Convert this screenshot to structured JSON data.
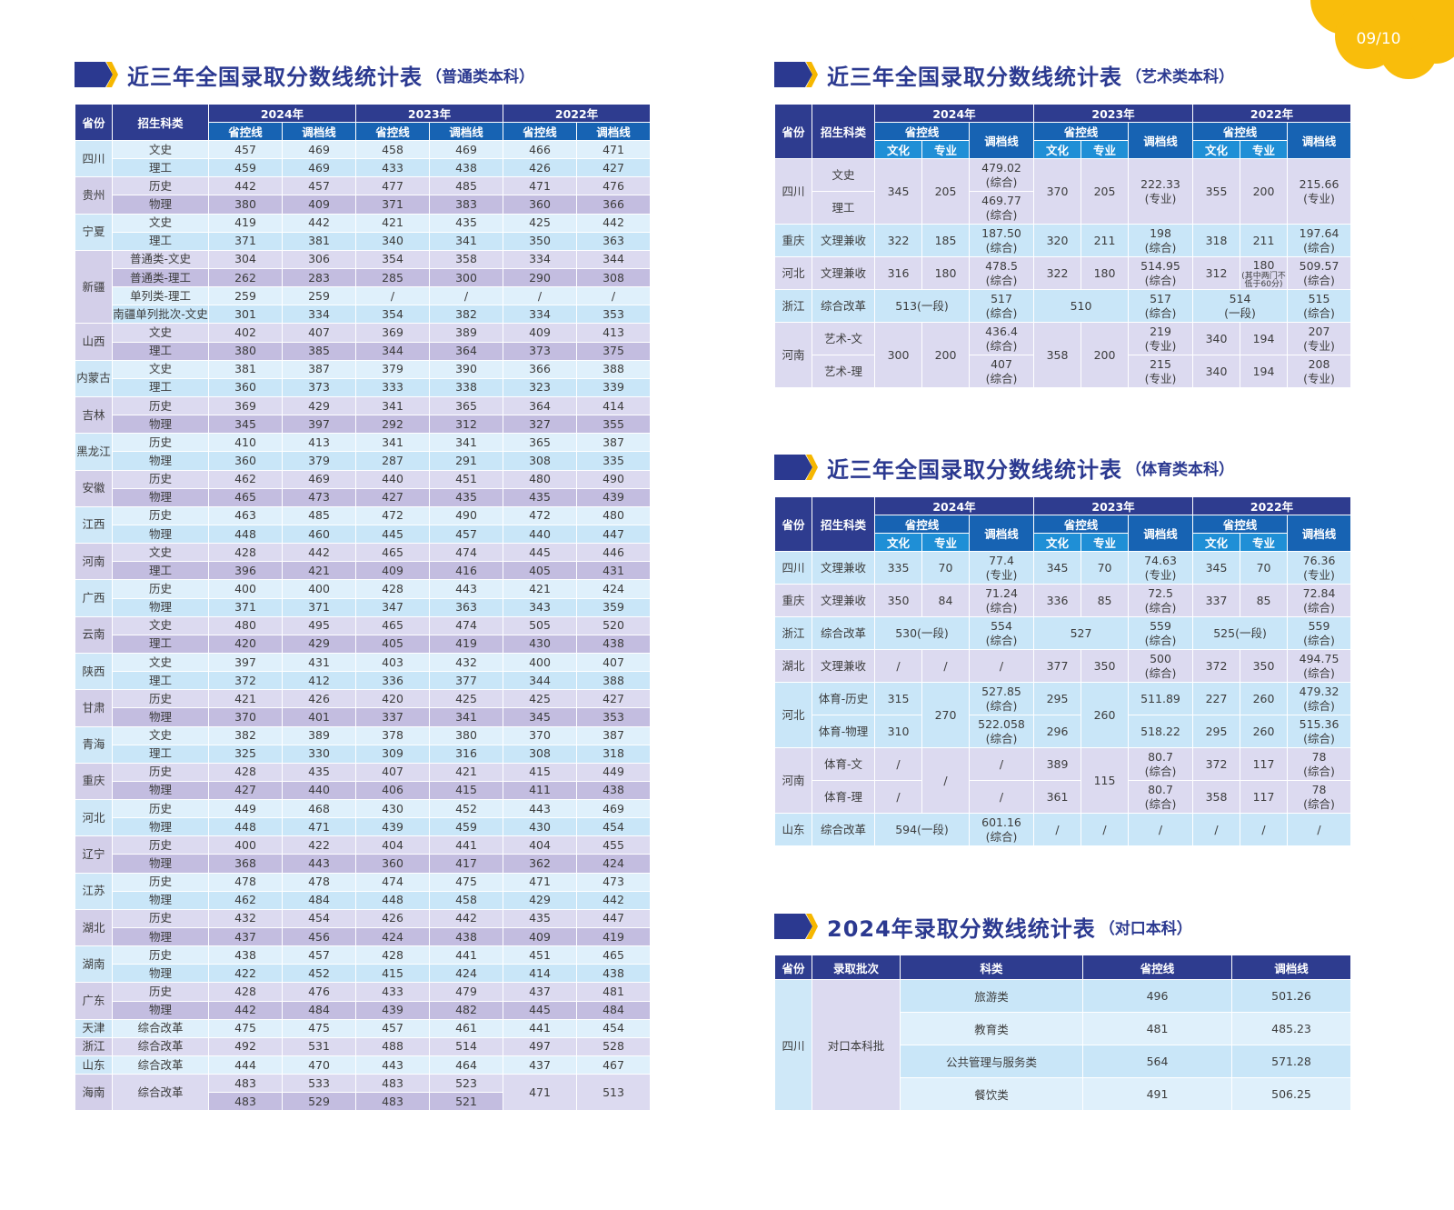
{
  "page": {
    "number": "09/10",
    "accent": "#f9b800",
    "navy": "#2e3c8f"
  },
  "titles": {
    "general": {
      "main": "近三年全国录取分数线统计表",
      "sub": "（普通类本科）"
    },
    "art": {
      "main": "近三年全国录取分数线统计表",
      "sub": "（艺术类本科）"
    },
    "sports": {
      "main": "近三年全国录取分数线统计表",
      "sub": "（体育类本科）"
    },
    "vocational": {
      "main": "2024年录取分数线统计表",
      "sub": "（对口本科）"
    }
  },
  "general": {
    "headers": {
      "province": "省份",
      "subject": "招生科类",
      "years": [
        "2024年",
        "2023年",
        "2022年"
      ],
      "cols": [
        "省控线",
        "调档线"
      ]
    },
    "provinces": [
      {
        "name": "四川",
        "rows": [
          {
            "s": "文史",
            "v": [
              "457",
              "469",
              "458",
              "469",
              "466",
              "471"
            ]
          },
          {
            "s": "理工",
            "v": [
              "459",
              "469",
              "433",
              "438",
              "426",
              "427"
            ]
          }
        ]
      },
      {
        "name": "贵州",
        "rows": [
          {
            "s": "历史",
            "v": [
              "442",
              "457",
              "477",
              "485",
              "471",
              "476"
            ]
          },
          {
            "s": "物理",
            "v": [
              "380",
              "409",
              "371",
              "383",
              "360",
              "366"
            ]
          }
        ]
      },
      {
        "name": "宁夏",
        "rows": [
          {
            "s": "文史",
            "v": [
              "419",
              "442",
              "421",
              "435",
              "425",
              "442"
            ]
          },
          {
            "s": "理工",
            "v": [
              "371",
              "381",
              "340",
              "341",
              "350",
              "363"
            ]
          }
        ]
      },
      {
        "name": "新疆",
        "rows": [
          {
            "s": "普通类-文史",
            "v": [
              "304",
              "306",
              "354",
              "358",
              "334",
              "344"
            ]
          },
          {
            "s": "普通类-理工",
            "v": [
              "262",
              "283",
              "285",
              "300",
              "290",
              "308"
            ]
          },
          {
            "s": "单列类-理工",
            "v": [
              "259",
              "259",
              "/",
              "/",
              "/",
              "/"
            ]
          },
          {
            "s": "南疆单列批次-文史",
            "v": [
              "301",
              "334",
              "354",
              "382",
              "334",
              "353"
            ]
          }
        ]
      },
      {
        "name": "山西",
        "rows": [
          {
            "s": "文史",
            "v": [
              "402",
              "407",
              "369",
              "389",
              "409",
              "413"
            ]
          },
          {
            "s": "理工",
            "v": [
              "380",
              "385",
              "344",
              "364",
              "373",
              "375"
            ]
          }
        ]
      },
      {
        "name": "内蒙古",
        "rows": [
          {
            "s": "文史",
            "v": [
              "381",
              "387",
              "379",
              "390",
              "366",
              "388"
            ]
          },
          {
            "s": "理工",
            "v": [
              "360",
              "373",
              "333",
              "338",
              "323",
              "339"
            ]
          }
        ]
      },
      {
        "name": "吉林",
        "rows": [
          {
            "s": "历史",
            "v": [
              "369",
              "429",
              "341",
              "365",
              "364",
              "414"
            ]
          },
          {
            "s": "物理",
            "v": [
              "345",
              "397",
              "292",
              "312",
              "327",
              "355"
            ]
          }
        ]
      },
      {
        "name": "黑龙江",
        "rows": [
          {
            "s": "历史",
            "v": [
              "410",
              "413",
              "341",
              "341",
              "365",
              "387"
            ]
          },
          {
            "s": "物理",
            "v": [
              "360",
              "379",
              "287",
              "291",
              "308",
              "335"
            ]
          }
        ]
      },
      {
        "name": "安徽",
        "rows": [
          {
            "s": "历史",
            "v": [
              "462",
              "469",
              "440",
              "451",
              "480",
              "490"
            ]
          },
          {
            "s": "物理",
            "v": [
              "465",
              "473",
              "427",
              "435",
              "435",
              "439"
            ]
          }
        ]
      },
      {
        "name": "江西",
        "rows": [
          {
            "s": "历史",
            "v": [
              "463",
              "485",
              "472",
              "490",
              "472",
              "480"
            ]
          },
          {
            "s": "物理",
            "v": [
              "448",
              "460",
              "445",
              "457",
              "440",
              "447"
            ]
          }
        ]
      },
      {
        "name": "河南",
        "rows": [
          {
            "s": "文史",
            "v": [
              "428",
              "442",
              "465",
              "474",
              "445",
              "446"
            ]
          },
          {
            "s": "理工",
            "v": [
              "396",
              "421",
              "409",
              "416",
              "405",
              "431"
            ]
          }
        ]
      },
      {
        "name": "广西",
        "rows": [
          {
            "s": "历史",
            "v": [
              "400",
              "400",
              "428",
              "443",
              "421",
              "424"
            ]
          },
          {
            "s": "物理",
            "v": [
              "371",
              "371",
              "347",
              "363",
              "343",
              "359"
            ]
          }
        ]
      },
      {
        "name": "云南",
        "rows": [
          {
            "s": "文史",
            "v": [
              "480",
              "495",
              "465",
              "474",
              "505",
              "520"
            ]
          },
          {
            "s": "理工",
            "v": [
              "420",
              "429",
              "405",
              "419",
              "430",
              "438"
            ]
          }
        ]
      },
      {
        "name": "陕西",
        "rows": [
          {
            "s": "文史",
            "v": [
              "397",
              "431",
              "403",
              "432",
              "400",
              "407"
            ]
          },
          {
            "s": "理工",
            "v": [
              "372",
              "412",
              "336",
              "377",
              "344",
              "388"
            ]
          }
        ]
      },
      {
        "name": "甘肃",
        "rows": [
          {
            "s": "历史",
            "v": [
              "421",
              "426",
              "420",
              "425",
              "425",
              "427"
            ]
          },
          {
            "s": "物理",
            "v": [
              "370",
              "401",
              "337",
              "341",
              "345",
              "353"
            ]
          }
        ]
      },
      {
        "name": "青海",
        "rows": [
          {
            "s": "文史",
            "v": [
              "382",
              "389",
              "378",
              "380",
              "370",
              "387"
            ]
          },
          {
            "s": "理工",
            "v": [
              "325",
              "330",
              "309",
              "316",
              "308",
              "318"
            ]
          }
        ]
      },
      {
        "name": "重庆",
        "rows": [
          {
            "s": "历史",
            "v": [
              "428",
              "435",
              "407",
              "421",
              "415",
              "449"
            ]
          },
          {
            "s": "物理",
            "v": [
              "427",
              "440",
              "406",
              "415",
              "411",
              "438"
            ]
          }
        ]
      },
      {
        "name": "河北",
        "rows": [
          {
            "s": "历史",
            "v": [
              "449",
              "468",
              "430",
              "452",
              "443",
              "469"
            ]
          },
          {
            "s": "物理",
            "v": [
              "448",
              "471",
              "439",
              "459",
              "430",
              "454"
            ]
          }
        ]
      },
      {
        "name": "辽宁",
        "rows": [
          {
            "s": "历史",
            "v": [
              "400",
              "422",
              "404",
              "441",
              "404",
              "455"
            ]
          },
          {
            "s": "物理",
            "v": [
              "368",
              "443",
              "360",
              "417",
              "362",
              "424"
            ]
          }
        ]
      },
      {
        "name": "江苏",
        "rows": [
          {
            "s": "历史",
            "v": [
              "478",
              "478",
              "474",
              "475",
              "471",
              "473"
            ]
          },
          {
            "s": "物理",
            "v": [
              "462",
              "484",
              "448",
              "458",
              "429",
              "442"
            ]
          }
        ]
      },
      {
        "name": "湖北",
        "rows": [
          {
            "s": "历史",
            "v": [
              "432",
              "454",
              "426",
              "442",
              "435",
              "447"
            ]
          },
          {
            "s": "物理",
            "v": [
              "437",
              "456",
              "424",
              "438",
              "409",
              "419"
            ]
          }
        ]
      },
      {
        "name": "湖南",
        "rows": [
          {
            "s": "历史",
            "v": [
              "438",
              "457",
              "428",
              "441",
              "451",
              "465"
            ]
          },
          {
            "s": "物理",
            "v": [
              "422",
              "452",
              "415",
              "424",
              "414",
              "438"
            ]
          }
        ]
      },
      {
        "name": "广东",
        "rows": [
          {
            "s": "历史",
            "v": [
              "428",
              "476",
              "433",
              "479",
              "437",
              "481"
            ]
          },
          {
            "s": "物理",
            "v": [
              "442",
              "484",
              "439",
              "482",
              "445",
              "484"
            ]
          }
        ]
      },
      {
        "name": "天津",
        "rows": [
          {
            "s": "综合改革",
            "v": [
              "475",
              "475",
              "457",
              "461",
              "441",
              "454"
            ]
          }
        ]
      },
      {
        "name": "浙江",
        "rows": [
          {
            "s": "综合改革",
            "v": [
              "492",
              "531",
              "488",
              "514",
              "497",
              "528"
            ]
          }
        ]
      },
      {
        "name": "山东",
        "rows": [
          {
            "s": "综合改革",
            "v": [
              "444",
              "470",
              "443",
              "464",
              "437",
              "467"
            ]
          }
        ]
      },
      {
        "name": "海南",
        "rows": [
          {
            "s": "综合改革",
            "v": [
              "483",
              "533",
              "483",
              "523",
              "471",
              "513"
            ]
          },
          {
            "v": [
              "483",
              "529",
              "483",
              "521"
            ]
          }
        ]
      }
    ]
  },
  "art": {
    "headers": {
      "province": "省份",
      "subject": "招生科类",
      "years": [
        "2024年",
        "2023年",
        "2022年"
      ],
      "control": "省控线",
      "transfer": "调档线",
      "culture": "文化",
      "major": "专业"
    },
    "rows": [
      [
        "四川",
        "文史",
        "345",
        "205",
        "479.02\n(综合)",
        "370",
        "205",
        "222.33\n(专业)",
        "355",
        "200",
        "215.66\n(专业)"
      ],
      [
        "理工",
        "469.77\n(综合)"
      ],
      [
        "重庆",
        "文理兼收",
        "322",
        "185",
        "187.50\n(综合)",
        "320",
        "211",
        "198\n(综合)",
        "318",
        "211",
        "197.64\n(综合)"
      ],
      [
        "河北",
        "文理兼收",
        "316",
        "180",
        "478.5\n(综合)",
        "322",
        "180",
        "514.95\n(综合)",
        "312",
        "180\n(其中两门不低于60分)",
        "509.57\n(综合)"
      ],
      [
        "浙江",
        "综合改革",
        "513(一段)",
        "517\n(综合)",
        "510",
        "517\n(综合)",
        "514\n(一段)",
        "515\n(综合)"
      ],
      [
        "河南",
        "艺术-文",
        "300",
        "200",
        "436.4\n(综合)",
        "358",
        "200",
        "219\n(专业)",
        "340",
        "194",
        "207\n(专业)"
      ],
      [
        "艺术-理",
        "407\n(综合)",
        "215\n(专业)",
        "340",
        "194",
        "208\n(专业)"
      ]
    ]
  },
  "sports": {
    "headers": {
      "province": "省份",
      "subject": "招生科类",
      "years": [
        "2024年",
        "2023年",
        "2022年"
      ],
      "control": "省控线",
      "transfer": "调档线",
      "culture": "文化",
      "major": "专业"
    },
    "rows": [
      [
        "四川",
        "文理兼收",
        "335",
        "70",
        "77.4\n(专业)",
        "345",
        "70",
        "74.63\n(专业)",
        "345",
        "70",
        "76.36\n(专业)"
      ],
      [
        "重庆",
        "文理兼收",
        "350",
        "84",
        "71.24\n(综合)",
        "336",
        "85",
        "72.5\n(综合)",
        "337",
        "85",
        "72.84\n(综合)"
      ],
      [
        "浙江",
        "综合改革",
        "530(一段)",
        "554\n(综合)",
        "527",
        "559\n(综合)",
        "525(一段)",
        "559\n(综合)"
      ],
      [
        "湖北",
        "文理兼收",
        "/",
        "/",
        "/",
        "377",
        "350",
        "500\n(综合)",
        "372",
        "350",
        "494.75\n(综合)"
      ],
      [
        "河北",
        "体育-历史",
        "315",
        "270",
        "527.85\n(综合)",
        "295",
        "260",
        "511.89",
        "227",
        "260",
        "479.32\n(综合)"
      ],
      [
        "体育-物理",
        "310",
        "522.058\n(综合)",
        "296",
        "518.22",
        "295",
        "260",
        "515.36\n(综合)"
      ],
      [
        "河南",
        "体育-文",
        "/",
        "/",
        "/",
        "389",
        "115",
        "80.7\n(综合)",
        "372",
        "117",
        "78\n(综合)"
      ],
      [
        "体育-理",
        "/",
        "/",
        "361",
        "80.7\n(综合)",
        "358",
        "117",
        "78\n(综合)"
      ],
      [
        "山东",
        "综合改革",
        "594(一段)",
        "601.16\n(综合)",
        "/",
        "/",
        "/",
        "/",
        "/",
        "/"
      ]
    ]
  },
  "vocational": {
    "headers": [
      "省份",
      "录取批次",
      "科类",
      "省控线",
      "调档线"
    ],
    "province": "四川",
    "batch": "对口本科批",
    "rows": [
      [
        "旅游类",
        "496",
        "501.26"
      ],
      [
        "教育类",
        "481",
        "485.23"
      ],
      [
        "公共管理与服务类",
        "564",
        "571.28"
      ],
      [
        "餐饮类",
        "491",
        "506.25"
      ]
    ]
  }
}
